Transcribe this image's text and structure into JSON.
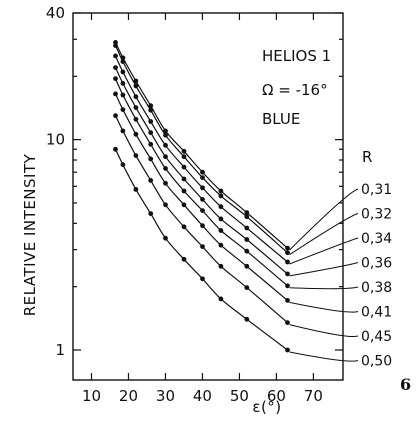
{
  "chart_data": {
    "type": "line",
    "title_lines": [
      "HELIOS  1",
      "Ω = -16°",
      "BLUE"
    ],
    "xlabel": "ε(°)",
    "ylabel": "RELATIVE INTENSITY",
    "xlim": [
      5,
      78
    ],
    "ylim": [
      0.72,
      40
    ],
    "y_scale": "log",
    "x_ticks": [
      10,
      20,
      30,
      40,
      50,
      60,
      70
    ],
    "y_ticks": [
      {
        "value": 1,
        "label": "1"
      },
      {
        "value": 10,
        "label": "10"
      },
      {
        "value": 40,
        "label": "40"
      }
    ],
    "grid": false,
    "legend_title": "R",
    "x": [
      16.5,
      18.5,
      22,
      26,
      30,
      35,
      40,
      45,
      52,
      63
    ],
    "series": [
      {
        "name": "0,31",
        "values": [
          29.0,
          24.5,
          19.0,
          14.5,
          11.0,
          8.8,
          7.0,
          5.7,
          4.5,
          3.05
        ]
      },
      {
        "name": "0,32",
        "values": [
          28.0,
          23.5,
          18.0,
          13.8,
          10.5,
          8.3,
          6.6,
          5.4,
          4.3,
          2.9
        ]
      },
      {
        "name": "0,34",
        "values": [
          25.0,
          21.0,
          16.0,
          12.2,
          9.4,
          7.4,
          5.9,
          4.8,
          3.8,
          2.62
        ]
      },
      {
        "name": "0,36",
        "values": [
          22.0,
          18.5,
          14.2,
          10.8,
          8.3,
          6.5,
          5.2,
          4.2,
          3.35,
          2.3
        ]
      },
      {
        "name": "0,38",
        "values": [
          19.5,
          16.3,
          12.5,
          9.5,
          7.3,
          5.7,
          4.6,
          3.7,
          2.95,
          2.02
        ]
      },
      {
        "name": "0,41",
        "values": [
          16.5,
          13.9,
          10.6,
          8.1,
          6.2,
          4.9,
          3.9,
          3.15,
          2.5,
          1.72
        ]
      },
      {
        "name": "0,45",
        "values": [
          13.0,
          11.0,
          8.4,
          6.4,
          4.9,
          3.85,
          3.1,
          2.5,
          1.98,
          1.35
        ]
      },
      {
        "name": "0,50",
        "values": [
          9.0,
          7.6,
          5.8,
          4.45,
          3.4,
          2.7,
          2.18,
          1.75,
          1.4,
          1.0
        ]
      }
    ],
    "figure_number": "6"
  }
}
